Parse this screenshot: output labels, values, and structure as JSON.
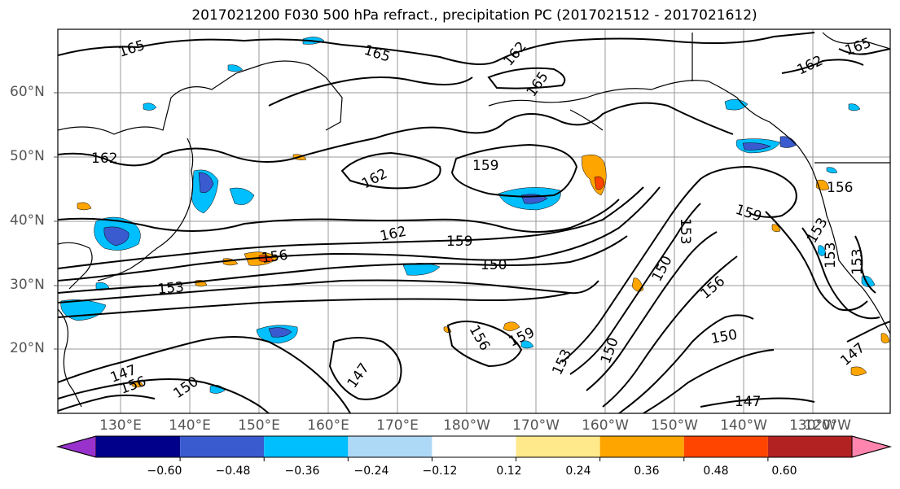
{
  "title": "2017021200 F030 500 hPa refract., precipitation PC (2017021512 - 2017021612)",
  "lat_labels": [
    "60°N",
    "50°N",
    "40°N",
    "30°N",
    "20°N"
  ],
  "lon_labels": [
    "130°E",
    "140°E",
    "150°E",
    "160°E",
    "170°E",
    "180°W",
    "170°W",
    "160°W",
    "150°W",
    "140°W",
    "130°W",
    "120°W"
  ],
  "colorbar": {
    "colors": [
      "#9932CC",
      "#00008B",
      "#3A5BCF",
      "#00BFFF",
      "#ADD8F6",
      "#FFFFFF",
      "#FFE98A",
      "#FFA500",
      "#FF4500",
      "#B22222",
      "#FF85AE"
    ],
    "tick_labels": [
      "−0.60",
      "−0.48",
      "−0.36",
      "−0.24",
      "−0.12",
      "0.12",
      "0.24",
      "0.36",
      "0.48",
      "0.60"
    ]
  },
  "contour_labels": [
    "165",
    "165",
    "162",
    "165",
    "162",
    "165",
    "162",
    "159",
    "162",
    "162",
    "159",
    "156",
    "150",
    "153",
    "159",
    "153",
    "150",
    "156",
    "156",
    "153",
    "153",
    "150",
    "153",
    "147",
    "156",
    "159",
    "150",
    "150",
    "147",
    "147",
    "147",
    "156",
    "153"
  ]
}
